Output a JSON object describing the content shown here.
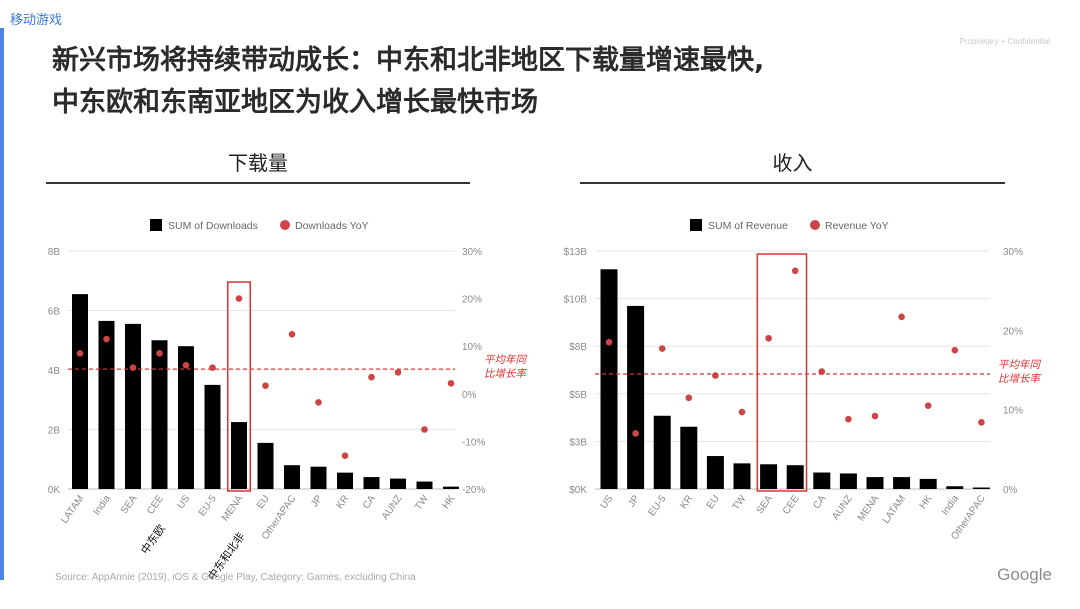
{
  "page": {
    "section_label": "移动游戏",
    "confidential": "Proprietary + Confidential",
    "headline_line1": "新兴市场将持续带动成长：中东和北非地区下载量增速最快,",
    "headline_line2": "中东欧和东南亚地区为收入增长最快市场",
    "source": "Source: AppAnnie (2019), iOS & Google Play, Category: Games, excluding China",
    "logo": "Google",
    "bar_color": "#000000",
    "dot_color": "#cc4444",
    "highlight_color": "#d93333",
    "accent_color": "#4a86e8"
  },
  "chart_data": [
    {
      "type": "bar",
      "panel_title": "下载量",
      "legend": [
        "SUM of Downloads",
        "Downloads YoY"
      ],
      "categories": [
        "LATAM",
        "India",
        "SEA",
        "CEE",
        "US",
        "EU-5",
        "MENA",
        "EU",
        "OtherAPAC",
        "JP",
        "KR",
        "CA",
        "AUNZ",
        "TW",
        "HK"
      ],
      "series": [
        {
          "name": "SUM of Downloads",
          "axis": "left",
          "kind": "bar",
          "values": [
            6.55,
            5.65,
            5.55,
            5.0,
            4.8,
            3.5,
            2.25,
            1.55,
            0.8,
            0.75,
            0.55,
            0.4,
            0.35,
            0.25,
            0.08
          ]
        },
        {
          "name": "Downloads YoY",
          "axis": "right",
          "kind": "scatter",
          "values": [
            8.5,
            11.5,
            5.5,
            8.5,
            6.0,
            5.5,
            20.0,
            1.7,
            12.5,
            -1.8,
            -13.0,
            3.5,
            4.5,
            -7.5,
            2.2
          ]
        }
      ],
      "y_left": {
        "min": 0,
        "max": 8,
        "ticks": [
          0,
          2,
          4,
          6,
          8
        ],
        "tick_labels": [
          "0K",
          "2B",
          "4B",
          "6B",
          "8B"
        ]
      },
      "y_right": {
        "min": -20,
        "max": 30,
        "ticks": [
          -20,
          -10,
          0,
          10,
          20,
          30
        ],
        "tick_labels": [
          "-20%",
          "-10%",
          "0%",
          "10%",
          "20%",
          "30%"
        ]
      },
      "average_line": {
        "value": 5.2,
        "axis": "right",
        "label_line1": "平均年同",
        "label_line2": "比增长率"
      },
      "highlight_category": "MENA",
      "cn_labels": [
        {
          "category": "CEE",
          "text": "中东欧"
        },
        {
          "category": "MENA",
          "text": "中东和北非"
        }
      ]
    },
    {
      "type": "bar",
      "panel_title": "收入",
      "legend": [
        "SUM of Revenue",
        "Revenue YoY"
      ],
      "categories": [
        "US",
        "JP",
        "EU-5",
        "KR",
        "EU",
        "TW",
        "SEA",
        "CEE",
        "CA",
        "AUNZ",
        "MENA",
        "LATAM",
        "HK",
        "India",
        "OtherAPAC"
      ],
      "series": [
        {
          "name": "SUM of Revenue",
          "axis": "left",
          "kind": "bar",
          "values": [
            12.0,
            10.0,
            4.0,
            3.4,
            1.8,
            1.4,
            1.35,
            1.3,
            0.9,
            0.85,
            0.65,
            0.65,
            0.55,
            0.15,
            0.08
          ]
        },
        {
          "name": "Revenue YoY",
          "axis": "right",
          "kind": "scatter",
          "values": [
            18.5,
            7.0,
            17.7,
            11.5,
            14.3,
            9.7,
            19.0,
            27.5,
            14.8,
            8.8,
            9.2,
            21.7,
            10.5,
            17.5,
            8.4
          ]
        }
      ],
      "y_left": {
        "min": 0,
        "max": 13,
        "ticks": [
          0,
          2.6,
          5.2,
          7.8,
          10.4,
          13
        ],
        "tick_labels": [
          "$0K",
          "$3B",
          "$5B",
          "$8B",
          "$10B",
          "$13B"
        ]
      },
      "y_right": {
        "min": 0,
        "max": 30,
        "ticks": [
          0,
          10,
          20,
          30
        ],
        "tick_labels": [
          "0%",
          "10%",
          "20%",
          "30%"
        ]
      },
      "average_line": {
        "value": 14.5,
        "axis": "right",
        "label_line1": "平均年同",
        "label_line2": "比增长率"
      },
      "highlight_categories": [
        "SEA",
        "CEE"
      ],
      "cn_labels": []
    }
  ]
}
